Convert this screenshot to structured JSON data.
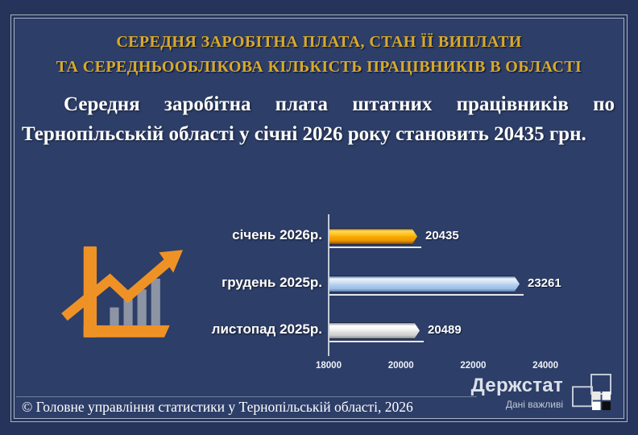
{
  "title": {
    "line1": "СЕРЕДНЯ ЗАРОБІТНА ПЛАТА, СТАН ЇЇ ВИПЛАТИ",
    "line2": "ТА СЕРЕДНЬООБЛІКОВА КІЛЬКІСТЬ ПРАЦІВНИКІВ В ОБЛАСТІ"
  },
  "summary": {
    "text": "Середня заробітна плата штатних працівників по Тернопільській області у січні 2026 року становить 20435 грн."
  },
  "chart_data": {
    "type": "bar",
    "orientation": "horizontal",
    "categories": [
      "січень 2026р.",
      "грудень 2025р.",
      "листопад 2025р."
    ],
    "values": [
      20435,
      23261,
      20489
    ],
    "value_labels": [
      "20435",
      "23261",
      "20489"
    ],
    "bar_colors": [
      "#f5a800",
      "#a9c6ec",
      "#e9e9e9"
    ],
    "x_ticks": [
      "18000",
      "20000",
      "22000",
      "24000"
    ],
    "xlim": [
      18000,
      26000
    ],
    "grid": false,
    "legend": false,
    "title": "",
    "xlabel": "",
    "ylabel": ""
  },
  "icon": {
    "name": "growth-chart-icon",
    "accent": "#ef9226",
    "bars": "#8d95a5"
  },
  "footer": {
    "copyright": "© Головне управління статистики у Тернопільській області, 2026"
  },
  "brand": {
    "name": "Держстат",
    "slogan": "Дані важливі"
  },
  "colors": {
    "outer_background": "#26345b",
    "panel_background": "#2d3e68",
    "frame_line": "#a9b2c3",
    "title_gold": "#d9a928",
    "text_white": "#ffffff"
  }
}
